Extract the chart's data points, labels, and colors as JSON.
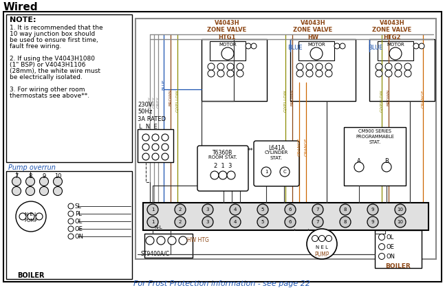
{
  "title": "Wired",
  "bg_color": "#ffffff",
  "note_text": [
    "NOTE:",
    "1. It is recommended that the",
    "10 way junction box should",
    "be used to ensure first time,",
    "fault free wiring.",
    "",
    "2. If using the V4043H1080",
    "(1\" BSP) or V4043H1106",
    "(28mm), the white wire must",
    "be electrically isolated.",
    "",
    "3. For wiring other room",
    "thermostats see above**."
  ],
  "pump_overrun_label": "Pump overrun",
  "bottom_text": "For Frost Protection information - see page 22",
  "wire_colors": {
    "grey": "#888888",
    "blue": "#1a52b0",
    "brown": "#8B4513",
    "gyellow": "#8B8B00",
    "orange": "#cc6600",
    "black": "#333333",
    "dkgrey": "#555555"
  },
  "zone_colors": {
    "label": "#8B4513",
    "blue_text": "#1a52b0"
  },
  "cm900_label": "CM900 SERIES\nPROGRAMMABLE\nSTAT.",
  "t6360b_label": "T6360B\nROOM STAT.\n2  1  3",
  "l641a_label": "L641A\nCYLINDER\nSTAT.",
  "power_label": "230V\n50Hz\n3A RATED",
  "figsize": [
    6.47,
    4.22
  ],
  "dpi": 100
}
